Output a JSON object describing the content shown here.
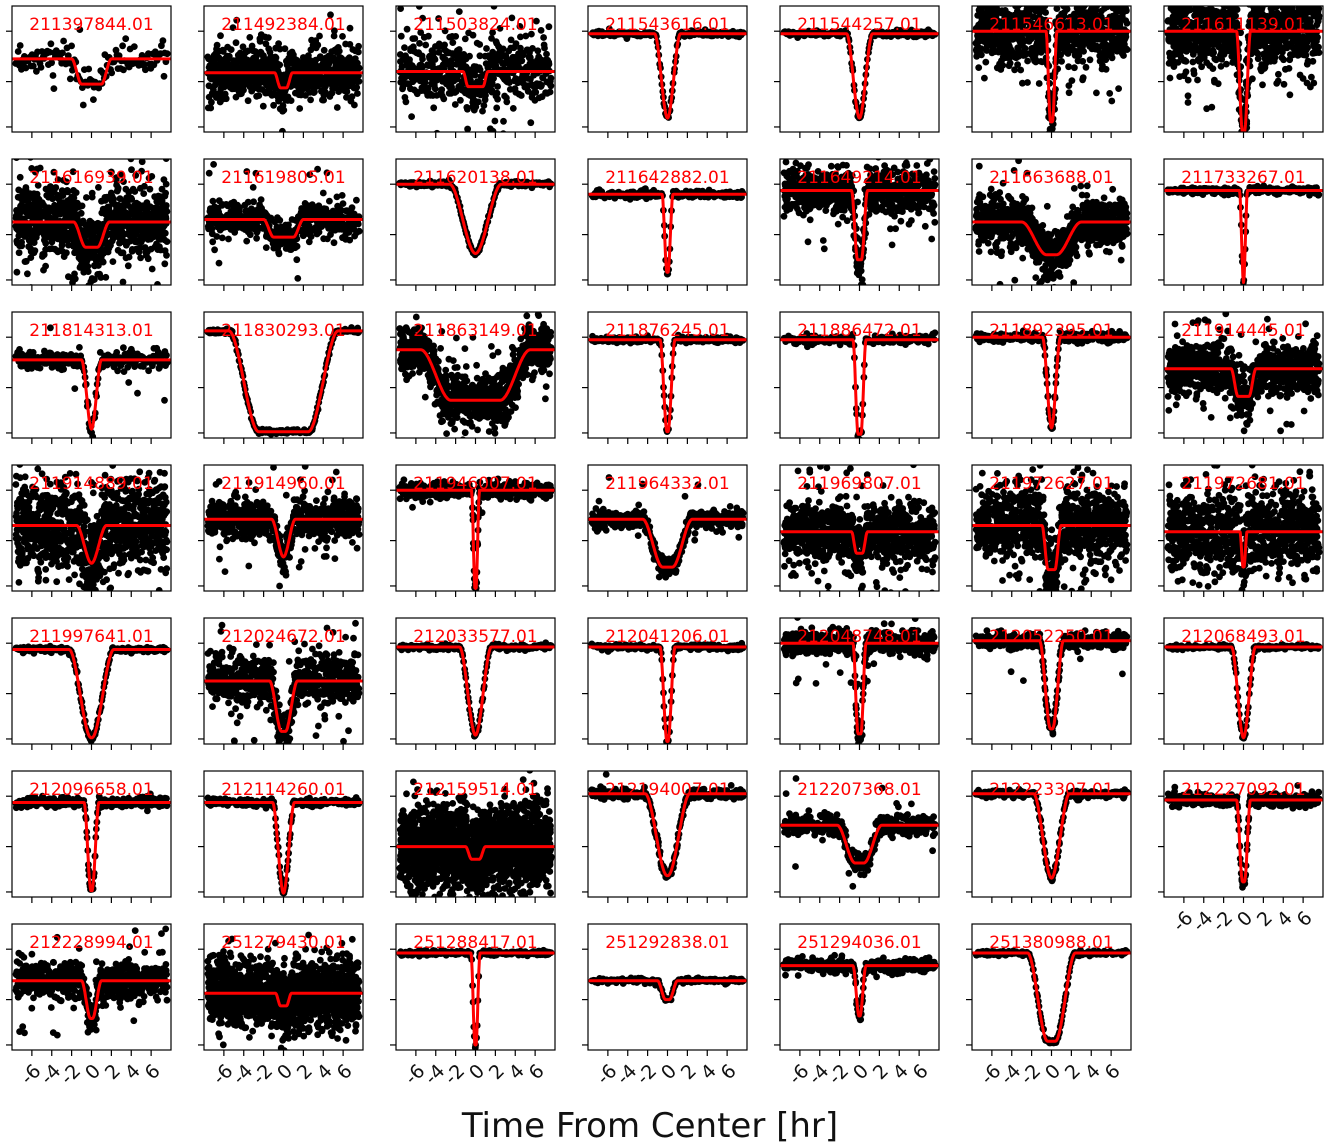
{
  "chart_data": {
    "type": "scatter",
    "xlabel": "Time From Center [hr]",
    "xlim": [
      -8,
      8
    ],
    "xticks": [
      -6,
      -4,
      -2,
      0,
      2,
      4,
      6
    ],
    "xtick_labels": [
      "-6",
      "-4",
      "-2",
      "0",
      "2",
      "4",
      "6"
    ],
    "ylim": [
      0,
      1
    ],
    "ytick_count": 3,
    "layout": {
      "rows": 7,
      "cols": 7
    },
    "point_color": "#000000",
    "model_color": "#ff0000",
    "label_color": "#ff0000",
    "panels": [
      {
        "label": "211397844.01",
        "baseline": 0.58,
        "depth": 0.2,
        "duration": 4.0,
        "ingress": 1.0,
        "scatter": 0.06,
        "points": 140,
        "outliers": 2
      },
      {
        "label": "211492384.01",
        "baseline": 0.47,
        "depth": 0.12,
        "duration": 1.8,
        "ingress": 0.6,
        "scatter": 0.1,
        "points": 800,
        "outliers": 10
      },
      {
        "label": "211503824.01",
        "baseline": 0.48,
        "depth": 0.12,
        "duration": 2.5,
        "ingress": 0.5,
        "scatter": 0.12,
        "points": 500,
        "outliers": 25
      },
      {
        "label": "211543616.01",
        "baseline": 0.78,
        "depth": 0.67,
        "duration": 2.6,
        "ingress": 1.3,
        "scatter": 0.012,
        "points": 200,
        "outliers": 0
      },
      {
        "label": "211544257.01",
        "baseline": 0.78,
        "depth": 0.67,
        "duration": 2.6,
        "ingress": 1.3,
        "scatter": 0.012,
        "points": 200,
        "outliers": 0
      },
      {
        "label": "211546613.01",
        "baseline": 0.8,
        "depth": 0.72,
        "duration": 1.1,
        "ingress": 0.45,
        "scatter": 0.14,
        "points": 900,
        "outliers": 20
      },
      {
        "label": "211611139.01",
        "baseline": 0.8,
        "depth": 0.8,
        "duration": 1.4,
        "ingress": 0.6,
        "scatter": 0.16,
        "points": 1000,
        "outliers": 15
      },
      {
        "label": "211616939.01",
        "baseline": 0.5,
        "depth": 0.2,
        "duration": 3.6,
        "ingress": 1.2,
        "scatter": 0.14,
        "points": 900,
        "outliers": 20
      },
      {
        "label": "211619805.01",
        "baseline": 0.52,
        "depth": 0.14,
        "duration": 4.0,
        "ingress": 1.0,
        "scatter": 0.07,
        "points": 500,
        "outliers": 12
      },
      {
        "label": "211620138.01",
        "baseline": 0.8,
        "depth": 0.55,
        "duration": 5.2,
        "ingress": 2.6,
        "scatter": 0.01,
        "points": 220,
        "outliers": 0
      },
      {
        "label": "211642882.01",
        "baseline": 0.72,
        "depth": 0.62,
        "duration": 1.1,
        "ingress": 0.5,
        "scatter": 0.015,
        "points": 200,
        "outliers": 0
      },
      {
        "label": "211649214.01",
        "baseline": 0.75,
        "depth": 0.55,
        "duration": 1.6,
        "ingress": 0.6,
        "scatter": 0.09,
        "points": 700,
        "outliers": 25
      },
      {
        "label": "211663688.01",
        "baseline": 0.5,
        "depth": 0.26,
        "duration": 6.0,
        "ingress": 2.5,
        "scatter": 0.1,
        "points": 900,
        "outliers": 15
      },
      {
        "label": "211733267.01",
        "baseline": 0.75,
        "depth": 0.73,
        "duration": 0.8,
        "ingress": 0.4,
        "scatter": 0.015,
        "points": 250,
        "outliers": 0
      },
      {
        "label": "211814313.01",
        "baseline": 0.62,
        "depth": 0.55,
        "duration": 2.0,
        "ingress": 1.0,
        "scatter": 0.04,
        "points": 220,
        "outliers": 5
      },
      {
        "label": "211830293.01",
        "baseline": 0.85,
        "depth": 0.8,
        "duration": 11.0,
        "ingress": 3.0,
        "scatter": 0.01,
        "points": 200,
        "outliers": 0
      },
      {
        "label": "211863149.01",
        "baseline": 0.7,
        "depth": 0.4,
        "duration": 11.0,
        "ingress": 3.0,
        "scatter": 0.1,
        "points": 900,
        "outliers": 15
      },
      {
        "label": "211876245.01",
        "baseline": 0.78,
        "depth": 0.73,
        "duration": 1.5,
        "ingress": 0.7,
        "scatter": 0.012,
        "points": 200,
        "outliers": 0
      },
      {
        "label": "211886472.01",
        "baseline": 0.78,
        "depth": 0.75,
        "duration": 1.3,
        "ingress": 0.5,
        "scatter": 0.02,
        "points": 200,
        "outliers": 0
      },
      {
        "label": "211892395.01",
        "baseline": 0.8,
        "depth": 0.72,
        "duration": 1.8,
        "ingress": 0.9,
        "scatter": 0.02,
        "points": 300,
        "outliers": 0
      },
      {
        "label": "211914445.01",
        "baseline": 0.55,
        "depth": 0.22,
        "duration": 2.5,
        "ingress": 0.7,
        "scatter": 0.1,
        "points": 900,
        "outliers": 20
      },
      {
        "label": "211914889.01",
        "baseline": 0.52,
        "depth": 0.3,
        "duration": 3.0,
        "ingress": 1.5,
        "scatter": 0.18,
        "points": 1000,
        "outliers": 25
      },
      {
        "label": "211914960.01",
        "baseline": 0.57,
        "depth": 0.3,
        "duration": 2.4,
        "ingress": 1.2,
        "scatter": 0.08,
        "points": 700,
        "outliers": 20
      },
      {
        "label": "211946007.01",
        "baseline": 0.8,
        "depth": 0.78,
        "duration": 0.8,
        "ingress": 0.35,
        "scatter": 0.03,
        "points": 450,
        "outliers": 2
      },
      {
        "label": "211964332.01",
        "baseline": 0.57,
        "depth": 0.38,
        "duration": 5.0,
        "ingress": 2.0,
        "scatter": 0.04,
        "points": 450,
        "outliers": 8
      },
      {
        "label": "211969807.01",
        "baseline": 0.47,
        "depth": 0.17,
        "duration": 1.6,
        "ingress": 0.5,
        "scatter": 0.12,
        "points": 900,
        "outliers": 30
      },
      {
        "label": "211972627.01",
        "baseline": 0.52,
        "depth": 0.35,
        "duration": 1.9,
        "ingress": 0.6,
        "scatter": 0.15,
        "points": 900,
        "outliers": 25
      },
      {
        "label": "211972681.01",
        "baseline": 0.47,
        "depth": 0.28,
        "duration": 0.7,
        "ingress": 0.3,
        "scatter": 0.16,
        "points": 900,
        "outliers": 25
      },
      {
        "label": "211997641.01",
        "baseline": 0.75,
        "depth": 0.7,
        "duration": 4.5,
        "ingress": 2.2,
        "scatter": 0.012,
        "points": 230,
        "outliers": 0
      },
      {
        "label": "212024672.01",
        "baseline": 0.5,
        "depth": 0.4,
        "duration": 2.8,
        "ingress": 1.2,
        "scatter": 0.1,
        "points": 700,
        "outliers": 20
      },
      {
        "label": "212033577.01",
        "baseline": 0.77,
        "depth": 0.7,
        "duration": 3.2,
        "ingress": 1.6,
        "scatter": 0.012,
        "points": 200,
        "outliers": 0
      },
      {
        "label": "212041206.01",
        "baseline": 0.77,
        "depth": 0.75,
        "duration": 1.5,
        "ingress": 0.7,
        "scatter": 0.012,
        "points": 200,
        "outliers": 0
      },
      {
        "label": "212048748.01",
        "baseline": 0.8,
        "depth": 0.72,
        "duration": 1.3,
        "ingress": 0.5,
        "scatter": 0.05,
        "points": 450,
        "outliers": 20
      },
      {
        "label": "212052250.01",
        "baseline": 0.82,
        "depth": 0.7,
        "duration": 2.4,
        "ingress": 1.1,
        "scatter": 0.03,
        "points": 450,
        "outliers": 6
      },
      {
        "label": "212068493.01",
        "baseline": 0.77,
        "depth": 0.72,
        "duration": 2.4,
        "ingress": 1.2,
        "scatter": 0.01,
        "points": 200,
        "outliers": 0
      },
      {
        "label": "212096658.01",
        "baseline": 0.75,
        "depth": 0.7,
        "duration": 1.5,
        "ingress": 0.7,
        "scatter": 0.02,
        "points": 300,
        "outliers": 0
      },
      {
        "label": "212114260.01",
        "baseline": 0.75,
        "depth": 0.72,
        "duration": 2.2,
        "ingress": 1.1,
        "scatter": 0.015,
        "points": 250,
        "outliers": 0
      },
      {
        "label": "212159514.01",
        "baseline": 0.4,
        "depth": 0.1,
        "duration": 2.0,
        "ingress": 0.6,
        "scatter": 0.17,
        "points": 2000,
        "outliers": 0
      },
      {
        "label": "212194007.01",
        "baseline": 0.82,
        "depth": 0.65,
        "duration": 4.5,
        "ingress": 2.2,
        "scatter": 0.02,
        "points": 300,
        "outliers": 2
      },
      {
        "label": "212207368.01",
        "baseline": 0.57,
        "depth": 0.3,
        "duration": 4.5,
        "ingress": 1.8,
        "scatter": 0.04,
        "points": 400,
        "outliers": 10
      },
      {
        "label": "212223307.01",
        "baseline": 0.82,
        "depth": 0.67,
        "duration": 3.6,
        "ingress": 1.8,
        "scatter": 0.015,
        "points": 250,
        "outliers": 0
      },
      {
        "label": "212227092.01",
        "baseline": 0.77,
        "depth": 0.65,
        "duration": 1.4,
        "ingress": 0.6,
        "scatter": 0.025,
        "points": 350,
        "outliers": 3
      },
      {
        "label": "212228994.01",
        "baseline": 0.55,
        "depth": 0.3,
        "duration": 2.0,
        "ingress": 0.9,
        "scatter": 0.07,
        "points": 700,
        "outliers": 20
      },
      {
        "label": "251279430.01",
        "baseline": 0.45,
        "depth": 0.1,
        "duration": 1.6,
        "ingress": 0.5,
        "scatter": 0.14,
        "points": 1400,
        "outliers": 0
      },
      {
        "label": "251288417.01",
        "baseline": 0.77,
        "depth": 0.73,
        "duration": 0.9,
        "ingress": 0.4,
        "scatter": 0.01,
        "points": 220,
        "outliers": 0
      },
      {
        "label": "251292838.01",
        "baseline": 0.55,
        "depth": 0.15,
        "duration": 2.0,
        "ingress": 0.8,
        "scatter": 0.01,
        "points": 180,
        "outliers": 0
      },
      {
        "label": "251294036.01",
        "baseline": 0.67,
        "depth": 0.4,
        "duration": 1.3,
        "ingress": 0.6,
        "scatter": 0.03,
        "points": 350,
        "outliers": 0
      },
      {
        "label": "251380988.01",
        "baseline": 0.77,
        "depth": 0.7,
        "duration": 4.8,
        "ingress": 2.0,
        "scatter": 0.01,
        "points": 200,
        "outliers": 0
      }
    ]
  }
}
